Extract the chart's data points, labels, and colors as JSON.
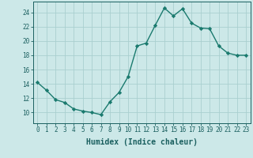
{
  "x": [
    0,
    1,
    2,
    3,
    4,
    5,
    6,
    7,
    8,
    9,
    10,
    11,
    12,
    13,
    14,
    15,
    16,
    17,
    18,
    19,
    20,
    21,
    22,
    23
  ],
  "y": [
    14.2,
    13.1,
    11.8,
    11.4,
    10.5,
    10.2,
    10.0,
    9.7,
    11.5,
    12.8,
    15.0,
    19.3,
    19.7,
    22.2,
    24.6,
    23.5,
    24.5,
    22.5,
    21.8,
    21.7,
    19.3,
    18.3,
    18.0,
    18.0
  ],
  "line_color": "#1a7a6e",
  "marker": "D",
  "marker_size": 2.2,
  "bg_color": "#cce8e8",
  "grid_color": "#aacfcf",
  "axis_color": "#1a5f5f",
  "xlabel": "Humidex (Indice chaleur)",
  "ylim": [
    8.5,
    25.5
  ],
  "xlim": [
    -0.5,
    23.5
  ],
  "yticks": [
    10,
    12,
    14,
    16,
    18,
    20,
    22,
    24
  ],
  "xticks": [
    0,
    1,
    2,
    3,
    4,
    5,
    6,
    7,
    8,
    9,
    10,
    11,
    12,
    13,
    14,
    15,
    16,
    17,
    18,
    19,
    20,
    21,
    22,
    23
  ],
  "tick_fontsize": 5.5,
  "label_fontsize": 7.0
}
